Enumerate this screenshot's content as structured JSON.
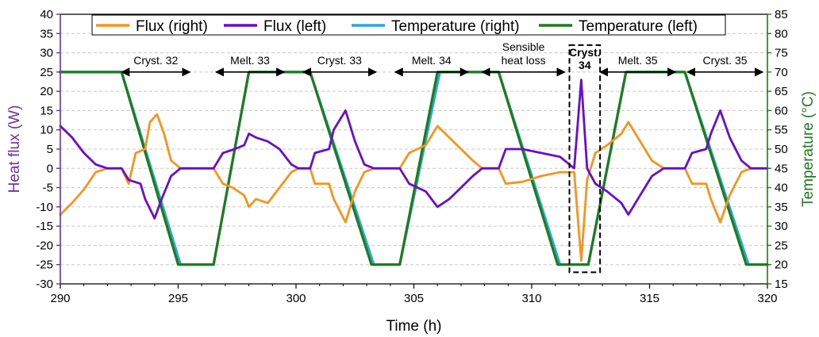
{
  "chart_data": {
    "type": "line",
    "title": "",
    "xlabel": "Time (h)",
    "ylabel_left": "Heat flux (W)",
    "ylabel_right": "Temperature (°C)",
    "xlim": [
      290,
      320
    ],
    "ylim_left": [
      -30,
      40
    ],
    "ylim_right": [
      15,
      85
    ],
    "x_ticks": [
      290,
      295,
      300,
      305,
      310,
      315,
      320
    ],
    "x_tick_labels": [
      "290",
      "295",
      "300",
      "305",
      "310",
      "315",
      "320"
    ],
    "y_left_ticks": [
      -30,
      -25,
      -20,
      -15,
      -10,
      -5,
      0,
      5,
      10,
      15,
      20,
      25,
      30,
      35,
      40
    ],
    "y_left_tick_labels": [
      "-30",
      "-25",
      "-20",
      "-15",
      "-10",
      "-5",
      "0",
      "5",
      "10",
      "15",
      "20",
      "25",
      "30",
      "35",
      "40"
    ],
    "y_right_ticks": [
      15,
      20,
      25,
      30,
      35,
      40,
      45,
      50,
      55,
      60,
      65,
      70,
      75,
      80,
      85
    ],
    "y_right_tick_labels": [
      "15",
      "20",
      "25",
      "30",
      "35",
      "40",
      "45",
      "50",
      "55",
      "60",
      "65",
      "70",
      "75",
      "80",
      "85"
    ],
    "grid": "horizontal dashed",
    "legend_position": "top",
    "colors": {
      "flux_right": "#f7941d",
      "flux_left": "#6a0dcc",
      "temp_right": "#29a8e0",
      "temp_left": "#1e7b1e",
      "left_axis": "#7030a0",
      "right_axis": "#1e7b1e"
    },
    "series": [
      {
        "name": "Flux (right)",
        "axis": "left",
        "color": "#f7941d",
        "points": [
          [
            290,
            -12
          ],
          [
            290.5,
            -9
          ],
          [
            291,
            -5.5
          ],
          [
            291.5,
            -1
          ],
          [
            292,
            0
          ],
          [
            292.6,
            0
          ],
          [
            292.9,
            -4
          ],
          [
            293.2,
            4
          ],
          [
            293.6,
            5
          ],
          [
            293.8,
            12
          ],
          [
            294.1,
            14
          ],
          [
            294.4,
            9
          ],
          [
            294.7,
            2
          ],
          [
            295.1,
            0
          ],
          [
            296.5,
            0
          ],
          [
            296.9,
            -4
          ],
          [
            297.3,
            -5
          ],
          [
            297.8,
            -7
          ],
          [
            298,
            -10
          ],
          [
            298.3,
            -8
          ],
          [
            298.8,
            -9
          ],
          [
            299.3,
            -5
          ],
          [
            299.8,
            -1
          ],
          [
            300.1,
            0
          ],
          [
            300.6,
            0
          ],
          [
            300.8,
            -4
          ],
          [
            301.4,
            -4
          ],
          [
            301.6,
            -8
          ],
          [
            302.1,
            -14
          ],
          [
            302.5,
            -6
          ],
          [
            302.9,
            -1
          ],
          [
            303.3,
            0
          ],
          [
            304.4,
            0
          ],
          [
            304.8,
            4
          ],
          [
            305.5,
            6
          ],
          [
            306,
            11
          ],
          [
            306.5,
            8
          ],
          [
            307,
            5
          ],
          [
            307.5,
            2
          ],
          [
            307.9,
            0
          ],
          [
            308.6,
            0
          ],
          [
            308.9,
            -4
          ],
          [
            309.6,
            -3.5
          ],
          [
            310.4,
            -2
          ],
          [
            311.2,
            -1
          ],
          [
            311.8,
            -1
          ],
          [
            312.1,
            -24
          ],
          [
            312.35,
            -3
          ],
          [
            312.7,
            4
          ],
          [
            313.2,
            6
          ],
          [
            313.8,
            9
          ],
          [
            314.1,
            12
          ],
          [
            314.6,
            7
          ],
          [
            315.1,
            2
          ],
          [
            315.6,
            0
          ],
          [
            316.5,
            0
          ],
          [
            316.8,
            -4
          ],
          [
            317.4,
            -4
          ],
          [
            317.6,
            -8
          ],
          [
            318,
            -14
          ],
          [
            318.4,
            -7
          ],
          [
            318.9,
            -1
          ],
          [
            319.3,
            0
          ],
          [
            320,
            0
          ]
        ]
      },
      {
        "name": "Flux (left)",
        "axis": "left",
        "color": "#6a0dcc",
        "points": [
          [
            290,
            11
          ],
          [
            290.5,
            8
          ],
          [
            291,
            4
          ],
          [
            291.5,
            1
          ],
          [
            292,
            0
          ],
          [
            292.6,
            0
          ],
          [
            292.9,
            -3
          ],
          [
            293.4,
            -4
          ],
          [
            293.6,
            -8
          ],
          [
            294,
            -13
          ],
          [
            294.3,
            -8
          ],
          [
            294.7,
            -2
          ],
          [
            295.1,
            0
          ],
          [
            296.5,
            0
          ],
          [
            296.9,
            4
          ],
          [
            297.4,
            5
          ],
          [
            297.8,
            6
          ],
          [
            298,
            9
          ],
          [
            298.3,
            8
          ],
          [
            298.8,
            7
          ],
          [
            299.3,
            5
          ],
          [
            299.8,
            1
          ],
          [
            300.1,
            0
          ],
          [
            300.6,
            0
          ],
          [
            300.8,
            4
          ],
          [
            301.4,
            5
          ],
          [
            301.6,
            10
          ],
          [
            302.1,
            15
          ],
          [
            302.5,
            7
          ],
          [
            302.9,
            1
          ],
          [
            303.3,
            0
          ],
          [
            304.4,
            0
          ],
          [
            304.8,
            -4
          ],
          [
            305.5,
            -6
          ],
          [
            306,
            -10
          ],
          [
            306.5,
            -8
          ],
          [
            307,
            -5
          ],
          [
            307.5,
            -2
          ],
          [
            307.9,
            0
          ],
          [
            308.6,
            0
          ],
          [
            308.9,
            5
          ],
          [
            309.6,
            5
          ],
          [
            310.4,
            4
          ],
          [
            311.2,
            3
          ],
          [
            311.8,
            0
          ],
          [
            312.1,
            23
          ],
          [
            312.35,
            0
          ],
          [
            312.7,
            -4
          ],
          [
            313.2,
            -6
          ],
          [
            313.8,
            -9
          ],
          [
            314.1,
            -12
          ],
          [
            314.6,
            -7
          ],
          [
            315.1,
            -2
          ],
          [
            315.6,
            0
          ],
          [
            316.5,
            0
          ],
          [
            316.8,
            4
          ],
          [
            317.4,
            5
          ],
          [
            317.6,
            9
          ],
          [
            318,
            15
          ],
          [
            318.4,
            8
          ],
          [
            318.9,
            2
          ],
          [
            319.3,
            0
          ],
          [
            320,
            0
          ]
        ]
      },
      {
        "name": "Temperature (right)",
        "axis": "right",
        "color": "#29a8e0",
        "points": [
          [
            290,
            70
          ],
          [
            292.6,
            70
          ],
          [
            295.1,
            20
          ],
          [
            296.5,
            20
          ],
          [
            298,
            70
          ],
          [
            300.6,
            70
          ],
          [
            303.3,
            20
          ],
          [
            304.4,
            20
          ],
          [
            306.1,
            70
          ],
          [
            308.6,
            70
          ],
          [
            311.2,
            20
          ],
          [
            312.4,
            20
          ],
          [
            314,
            70
          ],
          [
            316.5,
            70
          ],
          [
            319.2,
            20
          ],
          [
            320,
            20
          ]
        ]
      },
      {
        "name": "Temperature (left)",
        "axis": "right",
        "color": "#1e7b1e",
        "points": [
          [
            290,
            70
          ],
          [
            292.6,
            70
          ],
          [
            295,
            20
          ],
          [
            296.5,
            20
          ],
          [
            298,
            70
          ],
          [
            300.6,
            70
          ],
          [
            303.2,
            20
          ],
          [
            304.4,
            20
          ],
          [
            306,
            70
          ],
          [
            308.6,
            70
          ],
          [
            311.1,
            20
          ],
          [
            312.4,
            20
          ],
          [
            314,
            70
          ],
          [
            316.5,
            70
          ],
          [
            319.1,
            20
          ],
          [
            320,
            20
          ]
        ]
      }
    ],
    "annotations": [
      {
        "id": "cryst-32",
        "lines": [
          "Cryst. 32"
        ],
        "x_from": 292.6,
        "x_to": 295.5,
        "y": 25,
        "bold": false
      },
      {
        "id": "melt-33",
        "lines": [
          "Melt. 33"
        ],
        "x_from": 296.6,
        "x_to": 299.5,
        "y": 25,
        "bold": false
      },
      {
        "id": "cryst-33",
        "lines": [
          "Cryst. 33"
        ],
        "x_from": 300.3,
        "x_to": 303.4,
        "y": 25,
        "bold": false
      },
      {
        "id": "melt-34",
        "lines": [
          "Melt. 34"
        ],
        "x_from": 304.2,
        "x_to": 307.3,
        "y": 25,
        "bold": false
      },
      {
        "id": "sensible-heat-loss",
        "lines": [
          "Sensible",
          "heat loss"
        ],
        "x_from": 307.9,
        "x_to": 311.4,
        "y": 25,
        "bold": false
      },
      {
        "id": "cryst-34",
        "lines": [
          "Cryst.",
          "34"
        ],
        "x_from": null,
        "x_to": null,
        "y": 25,
        "bold": true
      },
      {
        "id": "melt-35",
        "lines": [
          "Melt. 35"
        ],
        "x_from": 312.9,
        "x_to": 316.1,
        "y": 25,
        "bold": false
      },
      {
        "id": "cryst-35",
        "lines": [
          "Cryst. 35"
        ],
        "x_from": 316.6,
        "x_to": 319.8,
        "y": 25,
        "bold": false
      }
    ],
    "highlight_box": {
      "x_from": 311.6,
      "x_to": 312.9,
      "y_from": -27,
      "y_to": 32
    }
  }
}
